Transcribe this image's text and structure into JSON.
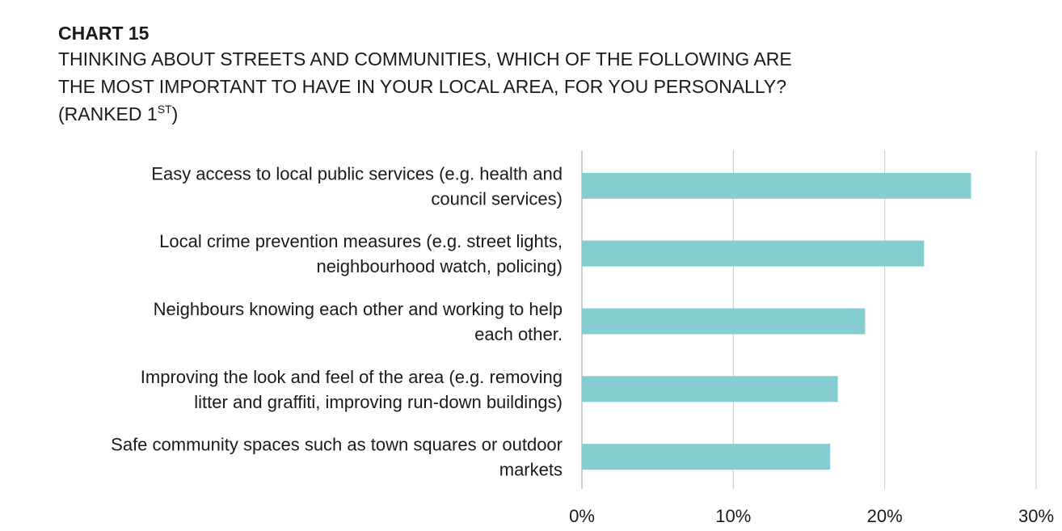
{
  "header": {
    "chart_number": "CHART 15",
    "title_lines": [
      "THINKING ABOUT STREETS AND COMMUNITIES, WHICH OF THE FOLLOWING ARE",
      "THE MOST IMPORTANT TO HAVE IN YOUR LOCAL AREA, FOR YOU PERSONALLY?"
    ],
    "title_ranked_prefix": "(RANKED 1",
    "title_ranked_sup": "ST",
    "title_ranked_suffix": ")"
  },
  "colors": {
    "bar": "#86CDD1",
    "grid": "#c8c8c8",
    "axis": "#bdbdbd"
  },
  "chart_data": {
    "type": "bar",
    "orientation": "horizontal",
    "categories": [
      [
        "Easy access to local public services (e.g. health and",
        "council services)"
      ],
      [
        "Local crime prevention measures (e.g. street lights,",
        "neighbourhood watch, policing)"
      ],
      [
        "Neighbours knowing each other and working to help",
        "each other."
      ],
      [
        "Improving the look and feel of the area (e.g. removing",
        "litter and graffiti, improving run-down buildings)"
      ],
      [
        "Safe community spaces such as town squares or outdoor",
        "markets"
      ]
    ],
    "values": [
      25.7,
      22.6,
      18.7,
      16.9,
      16.4
    ],
    "xlim": [
      0,
      30
    ],
    "xticks": [
      0,
      10,
      20,
      30
    ],
    "xtick_labels": [
      "0%",
      "10%",
      "20%",
      "30%"
    ],
    "grid": true,
    "legend": "none"
  }
}
